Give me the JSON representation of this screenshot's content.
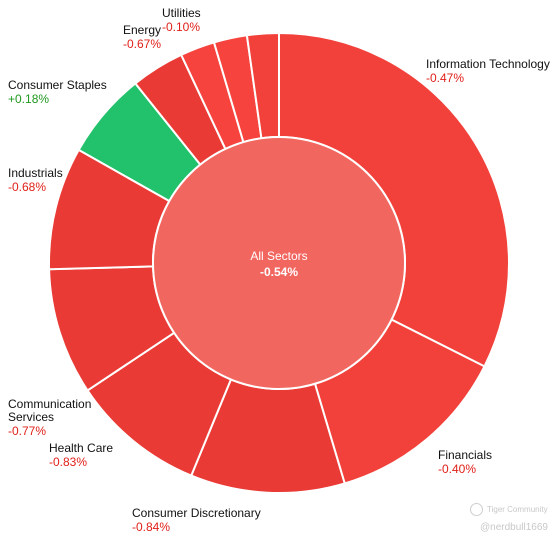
{
  "chart_data": {
    "type": "pie",
    "center": {
      "label": "All Sectors",
      "value": "-0.54%",
      "color": "#f26660"
    },
    "slices": [
      {
        "name": "Information Technology",
        "change": "-0.47%",
        "weight": 32.0,
        "color": "#f2413b"
      },
      {
        "name": "Financials",
        "change": "-0.40%",
        "weight": 12.8,
        "color": "#f2413b"
      },
      {
        "name": "Consumer Discretionary",
        "change": "-0.84%",
        "weight": 10.7,
        "color": "#e93a35"
      },
      {
        "name": "Health Care",
        "change": "-0.83%",
        "weight": 9.3,
        "color": "#e93a35"
      },
      {
        "name": "Communication Services",
        "change": "-0.77%",
        "weight": 8.8,
        "color": "#e93a35"
      },
      {
        "name": "Industrials",
        "change": "-0.68%",
        "weight": 8.5,
        "color": "#e93a35"
      },
      {
        "name": "Consumer Staples",
        "change": "+0.18%",
        "weight": 6.0,
        "color": "#22c16b"
      },
      {
        "name": "Energy",
        "change": "-0.67%",
        "weight": 3.7,
        "color": "#e93a35"
      },
      {
        "name": "",
        "change": "",
        "weight": 2.4,
        "color": "#f7433e"
      },
      {
        "name": "",
        "change": "",
        "weight": 2.3,
        "color": "#f7433e"
      },
      {
        "name": "Utilities",
        "change": "-0.10%",
        "weight": 2.2,
        "color": "#f2413b"
      }
    ],
    "value_colors": {
      "negative": "#e0201a",
      "positive": "#1f9a1f"
    }
  },
  "watermark": {
    "brand": "Tiger Community",
    "user": "@nerdbull1669"
  }
}
